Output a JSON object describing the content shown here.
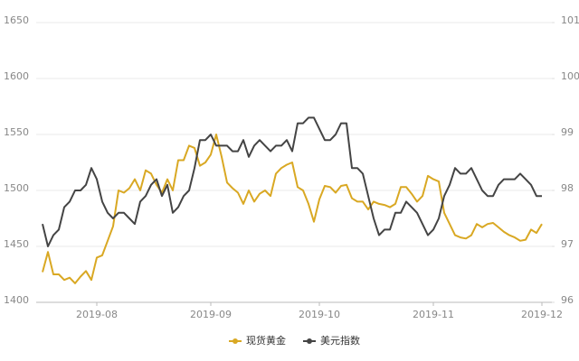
{
  "chart_data": {
    "type": "line",
    "categories": [
      null,
      null,
      null,
      null,
      null,
      null,
      null,
      null,
      null,
      null,
      "2019-08",
      null,
      null,
      null,
      null,
      null,
      null,
      null,
      null,
      null,
      null,
      null,
      null,
      null,
      null,
      null,
      null,
      null,
      null,
      null,
      null,
      "2019-09",
      null,
      null,
      null,
      null,
      null,
      null,
      null,
      null,
      null,
      null,
      null,
      null,
      null,
      null,
      null,
      null,
      null,
      null,
      null,
      "2019-10",
      null,
      null,
      null,
      null,
      null,
      null,
      null,
      null,
      null,
      null,
      null,
      null,
      null,
      null,
      null,
      null,
      null,
      null,
      null,
      null,
      "2019-11",
      null,
      null,
      null,
      null,
      null,
      null,
      null,
      null,
      null,
      null,
      null,
      null,
      null,
      null,
      null,
      null,
      null,
      null,
      null,
      "2019-12"
    ],
    "series": [
      {
        "name": "现货黄金",
        "color": "#d9a823",
        "values": [
          1427,
          1445,
          1425,
          1425,
          1420,
          1422,
          1417,
          1423,
          1428,
          1420,
          1440,
          1442,
          1455,
          1468,
          1500,
          1498,
          1502,
          1510,
          1500,
          1518,
          1515,
          1505,
          1498,
          1510,
          1500,
          1527,
          1527,
          1540,
          1538,
          1522,
          1525,
          1532,
          1550,
          1530,
          1507,
          1502,
          1498,
          1488,
          1500,
          1490,
          1497,
          1500,
          1495,
          1515,
          1520,
          1523,
          1525,
          1503,
          1500,
          1488,
          1472,
          1492,
          1504,
          1503,
          1498,
          1504,
          1505,
          1493,
          1490,
          1490,
          1483,
          1490,
          1488,
          1487,
          1485,
          1488,
          1503,
          1503,
          1497,
          1490,
          1495,
          1513,
          1510,
          1508,
          1480,
          1470,
          1460,
          1458,
          1457,
          1460,
          1470,
          1467,
          1470,
          1471,
          1467,
          1463,
          1460,
          1458,
          1455,
          1456,
          1465,
          1462,
          1470
        ]
      },
      {
        "name": "美元指数",
        "color": "#444444",
        "axis": "y2",
        "values": [
          97.4,
          97.0,
          97.2,
          97.3,
          97.7,
          97.8,
          98.0,
          98.0,
          98.1,
          98.4,
          98.2,
          97.8,
          97.6,
          97.5,
          97.6,
          97.6,
          97.5,
          97.4,
          97.8,
          97.9,
          98.1,
          98.2,
          97.9,
          98.1,
          97.6,
          97.7,
          97.9,
          98.0,
          98.4,
          98.9,
          98.9,
          99.0,
          98.8,
          98.8,
          98.8,
          98.7,
          98.7,
          98.9,
          98.6,
          98.8,
          98.9,
          98.8,
          98.7,
          98.8,
          98.8,
          98.9,
          98.7,
          99.2,
          99.2,
          99.3,
          99.3,
          99.1,
          98.9,
          98.9,
          99.0,
          99.2,
          99.2,
          98.4,
          98.4,
          98.3,
          97.9,
          97.5,
          97.2,
          97.3,
          97.3,
          97.6,
          97.6,
          97.8,
          97.7,
          97.6,
          97.4,
          97.2,
          97.3,
          97.5,
          97.9,
          98.1,
          98.4,
          98.3,
          98.3,
          98.4,
          98.2,
          98.0,
          97.9,
          97.9,
          98.1,
          98.2,
          98.2,
          98.2,
          98.3,
          98.2,
          98.1,
          97.9,
          97.9
        ]
      }
    ],
    "ylim": [
      1400,
      1650
    ],
    "yticks": [
      1400,
      1450,
      1500,
      1550,
      1600,
      1650
    ],
    "y2lim": [
      96,
      101
    ],
    "y2ticks": [
      96,
      97,
      98,
      99,
      100,
      101
    ],
    "grid": true,
    "legend": "bottom"
  }
}
